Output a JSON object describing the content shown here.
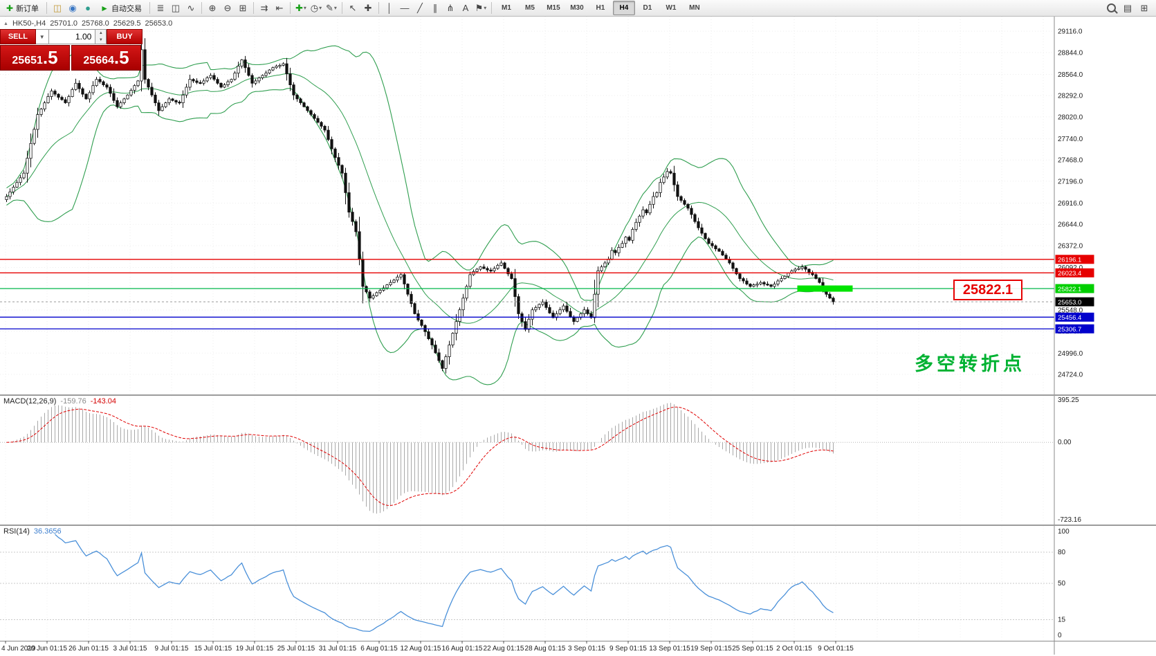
{
  "toolbar": {
    "items": [
      {
        "name": "new-order-button",
        "glyph": "✚",
        "color": "#18a018",
        "label": "新订单"
      },
      {
        "kind": "sep"
      },
      {
        "name": "charts-window-icon",
        "glyph": "◫",
        "color": "#c29a3a"
      },
      {
        "name": "profiles-icon",
        "glyph": "◉",
        "color": "#3a77c4"
      },
      {
        "name": "market-watch-icon",
        "glyph": "●",
        "color": "#2f9e8f"
      },
      {
        "name": "autotrading-button",
        "glyph": "►",
        "color": "#18a018",
        "label": "自动交易"
      },
      {
        "kind": "sep"
      },
      {
        "name": "bar-chart-type-icon",
        "glyph": "≣"
      },
      {
        "name": "candlestick-type-icon",
        "glyph": "◫"
      },
      {
        "name": "line-chart-type-icon",
        "glyph": "∿"
      },
      {
        "kind": "sep"
      },
      {
        "name": "zoom-in-icon",
        "glyph": "⊕"
      },
      {
        "name": "zoom-out-icon",
        "glyph": "⊖"
      },
      {
        "name": "tile-windows-icon",
        "glyph": "⊞"
      },
      {
        "kind": "sep"
      },
      {
        "name": "auto-scroll-icon",
        "glyph": "⇉"
      },
      {
        "name": "chart-shift-icon",
        "glyph": "⇤"
      },
      {
        "kind": "sep"
      },
      {
        "name": "indicators-icon",
        "glyph": "✚",
        "color": "#18a018",
        "dropdown": true
      },
      {
        "name": "periods-icon",
        "glyph": "◷",
        "dropdown": true
      },
      {
        "name": "templates-icon",
        "glyph": "✎",
        "dropdown": true
      },
      {
        "kind": "sep"
      },
      {
        "name": "cursor-icon",
        "glyph": "↖"
      },
      {
        "name": "crosshair-icon",
        "glyph": "✚"
      },
      {
        "kind": "sep"
      },
      {
        "name": "vertical-line-icon",
        "glyph": "│"
      },
      {
        "name": "horizontal-line-icon",
        "glyph": "―"
      },
      {
        "name": "trendline-icon",
        "glyph": "╱"
      },
      {
        "name": "channel-icon",
        "glyph": "∥"
      },
      {
        "name": "fibonacci-icon",
        "glyph": "⋔"
      },
      {
        "name": "text-icon",
        "glyph": "A"
      },
      {
        "name": "label-flag-icon",
        "glyph": "⚑",
        "dropdown": true
      },
      {
        "kind": "sep"
      }
    ],
    "timeframes": [
      {
        "label": "M1"
      },
      {
        "label": "M5"
      },
      {
        "label": "M15"
      },
      {
        "label": "M30"
      },
      {
        "label": "H1"
      },
      {
        "label": "H4",
        "active": true
      },
      {
        "label": "D1"
      },
      {
        "label": "W1"
      },
      {
        "label": "MN"
      }
    ],
    "right_items": [
      {
        "name": "search-icon",
        "kind": "search"
      },
      {
        "name": "data-window-icon",
        "glyph": "▤"
      },
      {
        "name": "new-chart-icon",
        "glyph": "⊞"
      }
    ]
  },
  "chart_title": {
    "symbol": "HK50-,H4",
    "open": "25701.0",
    "high": "25768.0",
    "low": "25629.5",
    "close": "25653.0"
  },
  "order_panel": {
    "sell_label": "SELL",
    "buy_label": "BUY",
    "volume": "1.00",
    "sell_price_main": "25651",
    "sell_price_frac": ".5",
    "buy_price_main": "25664",
    "buy_price_frac": ".5"
  },
  "price_axis": {
    "labels": [
      29116.0,
      28844.0,
      28564.0,
      28292.0,
      28020.0,
      27740.0,
      27468.0,
      27196.0,
      26916.0,
      26644.0,
      26372.0,
      26092.0,
      25548.0,
      25276.0,
      24996.0,
      24724.0
    ]
  },
  "levels": [
    {
      "name": "resistance-line-1",
      "price": 26196.1,
      "line_color": "#e60000",
      "tag_color": "#e60000"
    },
    {
      "name": "resistance-line-2",
      "price": 26023.4,
      "line_color": "#e60000",
      "tag_color": "#e60000"
    },
    {
      "name": "pivot-line-green",
      "price": 25822.1,
      "line_color": "#00b84a",
      "tag_color": "#00cf00"
    },
    {
      "name": "support-line-1",
      "price": 25456.4,
      "line_color": "#0000cc",
      "tag_color": "#0000cc"
    },
    {
      "name": "support-line-2",
      "price": 25306.7,
      "line_color": "#0000cc",
      "tag_color": "#0000cc"
    }
  ],
  "current_price": {
    "value": 25653.0,
    "tag_color": "#000000"
  },
  "highlight_bar": {
    "price": 25822.1,
    "from_bar": 229,
    "to_bar": 245,
    "color": "#00e400"
  },
  "annotations": {
    "level_label": "25822.1",
    "level_label_color": "#e60000",
    "turning_point": "多空转折点",
    "turning_point_color": "#00b232"
  },
  "macd": {
    "name": "MACD(12,26,9)",
    "value": "-159.76",
    "signal_value": "-143.04",
    "axis": [
      395.25,
      0.0,
      -723.16
    ]
  },
  "rsi": {
    "name": "RSI(14)",
    "value": "36.3656",
    "axis": [
      100,
      80,
      50,
      15,
      0
    ],
    "level_lines": [
      80,
      50,
      15
    ]
  },
  "time_axis": {
    "labels": [
      "4 Jun 2019",
      "20 Jun 01:15",
      "26 Jun 01:15",
      "3 Jul 01:15",
      "9 Jul 01:15",
      "15 Jul 01:15",
      "19 Jul 01:15",
      "25 Jul 01:15",
      "31 Jul 01:15",
      "6 Aug 01:15",
      "12 Aug 01:15",
      "16 Aug 01:15",
      "22 Aug 01:15",
      "28 Aug 01:15",
      "3 Sep 01:15",
      "9 Sep 01:15",
      "13 Sep 01:15",
      "19 Sep 01:15",
      "25 Sep 01:15",
      "2 Oct 01:15",
      "9 Oct 01:15"
    ]
  },
  "chart_data": {
    "type": "candlestick",
    "symbol": "HK50-",
    "timeframe": "H4",
    "price_range": [
      24600,
      29250
    ],
    "bars_visible": 240,
    "closes": [
      27000,
      27060,
      27120,
      27180,
      27240,
      27300,
      27490,
      27680,
      27860,
      28050,
      28120,
      28200,
      28280,
      28350,
      28310,
      28270,
      28240,
      28200,
      28280,
      28370,
      28450,
      28380,
      28310,
      28250,
      28330,
      28420,
      28500,
      28470,
      28430,
      28400,
      28320,
      28230,
      28150,
      28200,
      28250,
      28300,
      28360,
      28420,
      28480,
      28880,
      28500,
      28400,
      28300,
      28200,
      28100,
      28150,
      28200,
      28250,
      28230,
      28210,
      28200,
      28300,
      28400,
      28500,
      28480,
      28460,
      28450,
      28480,
      28520,
      28550,
      28500,
      28450,
      28400,
      28430,
      28470,
      28500,
      28580,
      28670,
      28750,
      28650,
      28550,
      28450,
      28480,
      28520,
      28550,
      28580,
      28620,
      28650,
      28670,
      28680,
      28700,
      28570,
      28430,
      28300,
      28250,
      28200,
      28150,
      28100,
      28050,
      28000,
      27950,
      27900,
      27850,
      27730,
      27610,
      27500,
      27400,
      27300,
      27050,
      26800,
      26680,
      26550,
      26200,
      25850,
      25780,
      25700,
      25730,
      25770,
      25800,
      25830,
      25870,
      25900,
      25930,
      25970,
      26000,
      25880,
      25750,
      25630,
      25500,
      25420,
      25350,
      25270,
      25180,
      25100,
      25000,
      24900,
      24800,
      24950,
      25100,
      25250,
      25400,
      25550,
      25700,
      25850,
      26000,
      26040,
      26070,
      26100,
      26080,
      26060,
      26050,
      26080,
      26120,
      26150,
      26080,
      26010,
      25950,
      25720,
      25500,
      25400,
      25300,
      25430,
      25550,
      25580,
      25620,
      25650,
      25580,
      25510,
      25450,
      25500,
      25550,
      25600,
      25530,
      25460,
      25400,
      25450,
      25500,
      25550,
      25500,
      25450,
      25750,
      26050,
      26100,
      26150,
      26200,
      26310,
      26280,
      26350,
      26400,
      26480,
      26440,
      26580,
      26670,
      26750,
      26830,
      26790,
      26900,
      27000,
      27050,
      27180,
      27250,
      27320,
      27300,
      27150,
      27000,
      26950,
      26900,
      26850,
      26770,
      26680,
      26600,
      26530,
      26460,
      26400,
      26370,
      26330,
      26300,
      26250,
      26200,
      26150,
      26080,
      26010,
      25950,
      25920,
      25880,
      25850,
      25870,
      25880,
      25900,
      25880,
      25870,
      25850,
      25880,
      25920,
      25950,
      25980,
      26020,
      26050,
      26070,
      26080,
      26100,
      26070,
      26030,
      26000,
      25950,
      25900,
      25820,
      25750,
      25700,
      25653
    ],
    "indicators": {
      "bollinger": {
        "period": 20,
        "deviation": 2,
        "color": "#2f9e4f"
      },
      "macd": {
        "fast": 12,
        "slow": 26,
        "signal": 9,
        "range": [
          -723.16,
          395.25
        ]
      },
      "rsi": {
        "period": 14,
        "range": [
          0,
          100
        ]
      }
    }
  }
}
